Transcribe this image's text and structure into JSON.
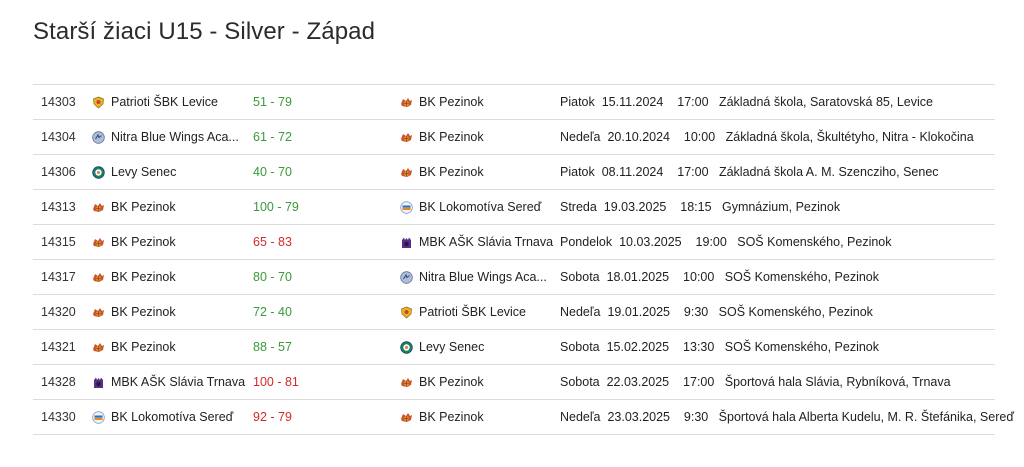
{
  "page": {
    "title": "Starší žiaci U15 - Silver - Západ"
  },
  "colors": {
    "win": "#3a9a3a",
    "loss": "#d42a2a",
    "divider": "#dcdcdc"
  },
  "games": [
    {
      "id": "14303",
      "home": "Patrioti ŠBK Levice",
      "home_logo": "patrioti-levice-logo",
      "score": "51 - 79",
      "result": "win",
      "away": "BK Pezinok",
      "away_logo": "bk-pezinok-logo",
      "day": "Piatok",
      "date": "15.11.2024",
      "time": "17:00",
      "venue": "Základná škola, Saratovská 85, Levice"
    },
    {
      "id": "14304",
      "home": "Nitra Blue Wings Aca...",
      "home_logo": "nitra-blue-wings-logo",
      "score": "61 - 72",
      "result": "win",
      "away": "BK Pezinok",
      "away_logo": "bk-pezinok-logo",
      "day": "Nedeľa",
      "date": "20.10.2024",
      "time": "10:00",
      "venue": "Základná škola, Škultétyho, Nitra - Klokočina"
    },
    {
      "id": "14306",
      "home": "Levy Senec",
      "home_logo": "levy-senec-logo",
      "score": "40 - 70",
      "result": "win",
      "away": "BK Pezinok",
      "away_logo": "bk-pezinok-logo",
      "day": "Piatok",
      "date": "08.11.2024",
      "time": "17:00",
      "venue": "Základná škola A. M. Szencziho, Senec"
    },
    {
      "id": "14313",
      "home": "BK Pezinok",
      "home_logo": "bk-pezinok-logo",
      "score": "100 - 79",
      "result": "win",
      "away": "BK Lokomotíva Sereď",
      "away_logo": "bk-lokomotiva-sered-logo",
      "day": "Streda",
      "date": "19.03.2025",
      "time": "18:15",
      "venue": "Gymnázium, Pezinok"
    },
    {
      "id": "14315",
      "home": "BK Pezinok",
      "home_logo": "bk-pezinok-logo",
      "score": "65 - 83",
      "result": "loss",
      "away": "MBK AŠK Slávia Trnava",
      "away_logo": "mbk-slavia-trnava-logo",
      "day": "Pondelok",
      "date": "10.03.2025",
      "time": "19:00",
      "venue": "SOŠ Komenského, Pezinok"
    },
    {
      "id": "14317",
      "home": "BK Pezinok",
      "home_logo": "bk-pezinok-logo",
      "score": "80 - 70",
      "result": "win",
      "away": "Nitra Blue Wings Aca...",
      "away_logo": "nitra-blue-wings-logo",
      "day": "Sobota",
      "date": "18.01.2025",
      "time": "10:00",
      "venue": "SOŠ Komenského, Pezinok"
    },
    {
      "id": "14320",
      "home": "BK Pezinok",
      "home_logo": "bk-pezinok-logo",
      "score": "72 - 40",
      "result": "win",
      "away": "Patrioti ŠBK Levice",
      "away_logo": "patrioti-levice-logo",
      "day": "Nedeľa",
      "date": "19.01.2025",
      "time": "9:30",
      "venue": "SOŠ Komenského, Pezinok"
    },
    {
      "id": "14321",
      "home": "BK Pezinok",
      "home_logo": "bk-pezinok-logo",
      "score": "88 - 57",
      "result": "win",
      "away": "Levy Senec",
      "away_logo": "levy-senec-logo",
      "day": "Sobota",
      "date": "15.02.2025",
      "time": "13:30",
      "venue": "SOŠ Komenského, Pezinok"
    },
    {
      "id": "14328",
      "home": "MBK AŠK Slávia Trnava",
      "home_logo": "mbk-slavia-trnava-logo",
      "score": "100 - 81",
      "result": "loss",
      "away": "BK Pezinok",
      "away_logo": "bk-pezinok-logo",
      "day": "Sobota",
      "date": "22.03.2025",
      "time": "17:00",
      "venue": "Športová hala Slávia, Rybníková, Trnava"
    },
    {
      "id": "14330",
      "home": "BK Lokomotíva Sereď",
      "home_logo": "bk-lokomotiva-sered-logo",
      "score": "92 - 79",
      "result": "loss",
      "away": "BK Pezinok",
      "away_logo": "bk-pezinok-logo",
      "day": "Nedeľa",
      "date": "23.03.2025",
      "time": "9:30",
      "venue": "Športová hala Alberta Kudelu, M. R. Štefánika, Sereď"
    }
  ]
}
